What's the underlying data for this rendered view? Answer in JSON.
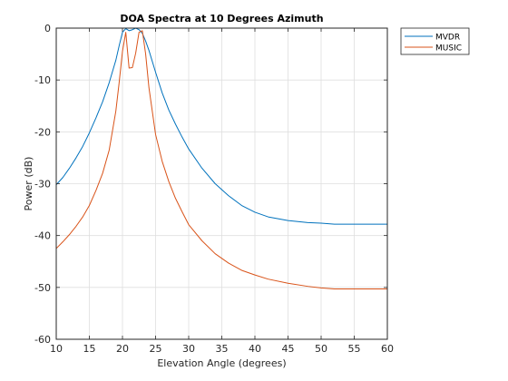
{
  "chart_data": {
    "type": "line",
    "title": "DOA Spectra at 10 Degrees Azimuth",
    "xlabel": "Elevation Angle (degrees)",
    "ylabel": "Power (dB)",
    "xlim": [
      10,
      60
    ],
    "ylim": [
      -60,
      0
    ],
    "xticks": [
      10,
      15,
      20,
      25,
      30,
      35,
      40,
      45,
      50,
      55,
      60
    ],
    "yticks": [
      0,
      -10,
      -20,
      -30,
      -40,
      -50,
      -60
    ],
    "grid": true,
    "legend_position": "outside-top-right",
    "series": [
      {
        "name": "MVDR",
        "color": "#0072BD",
        "x": [
          10,
          11,
          12,
          13,
          14,
          15,
          16,
          17,
          18,
          19,
          19.5,
          20,
          20.5,
          21,
          21.5,
          22,
          22.5,
          23,
          23.5,
          24,
          25,
          26,
          27,
          28,
          29,
          30,
          32,
          34,
          36,
          38,
          40,
          42,
          45,
          48,
          50,
          52,
          55,
          58,
          60
        ],
        "y": [
          -30.2,
          -28.8,
          -27.0,
          -25.0,
          -22.8,
          -20.2,
          -17.3,
          -14.2,
          -10.5,
          -6.2,
          -3.4,
          -0.8,
          -0.1,
          -0.5,
          -0.3,
          0,
          -0.3,
          -1.0,
          -2.5,
          -4.3,
          -8.5,
          -12.5,
          -15.8,
          -18.5,
          -21.0,
          -23.3,
          -27.0,
          -30.0,
          -32.3,
          -34.2,
          -35.5,
          -36.4,
          -37.1,
          -37.5,
          -37.6,
          -37.8,
          -37.8,
          -37.8,
          -37.8
        ]
      },
      {
        "name": "MUSIC",
        "color": "#D95319",
        "x": [
          10,
          11,
          12,
          13,
          14,
          15,
          16,
          17,
          18,
          19,
          19.5,
          20,
          20.5,
          21,
          21.5,
          22,
          22.5,
          23,
          23.5,
          24,
          25,
          26,
          27,
          28,
          29,
          30,
          32,
          34,
          36,
          38,
          40,
          42,
          45,
          48,
          50,
          52,
          55,
          58,
          60
        ],
        "y": [
          -42.5,
          -41.2,
          -39.8,
          -38.2,
          -36.4,
          -34.2,
          -31.3,
          -28.0,
          -23.5,
          -16.0,
          -10.5,
          -4.5,
          -0.8,
          -7.7,
          -7.6,
          -4.8,
          -0.8,
          -0.5,
          -5.0,
          -11.5,
          -20.5,
          -25.7,
          -29.6,
          -32.8,
          -35.4,
          -37.9,
          -41.0,
          -43.5,
          -45.3,
          -46.7,
          -47.6,
          -48.4,
          -49.2,
          -49.8,
          -50.1,
          -50.3,
          -50.3,
          -50.3,
          -50.3
        ]
      }
    ]
  }
}
